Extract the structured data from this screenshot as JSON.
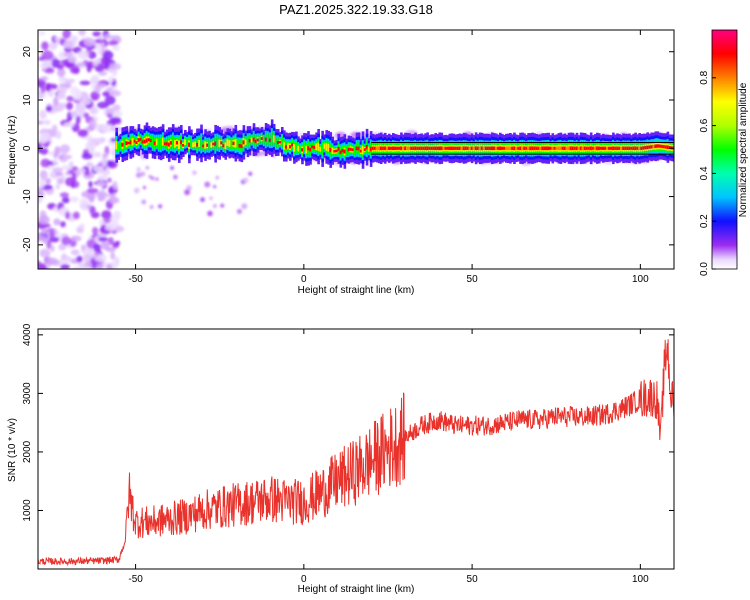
{
  "title": "PAZ1.2025.322.19.33.G18",
  "chart_data": [
    {
      "type": "heatmap",
      "xlabel": "Height of straight line (km)",
      "ylabel": "Frequency (Hz)",
      "xlim": [
        -79,
        110
      ],
      "ylim": [
        -25,
        24.5
      ],
      "xticks": [
        -50,
        0,
        50,
        100
      ],
      "yticks": [
        -20,
        -10,
        0,
        10,
        20
      ],
      "colorbar": {
        "label": "Normalized spectral amplitude",
        "range": [
          0,
          1
        ],
        "ticks": [
          0.0,
          0.2,
          0.4,
          0.6,
          0.8
        ]
      },
      "model_line_frequency": 0,
      "ridge": {
        "x": [
          -55,
          -50,
          -45,
          -40,
          -35,
          -30,
          -25,
          -20,
          -15,
          -10,
          -5,
          0,
          5,
          10,
          15,
          20,
          30,
          50,
          70,
          90,
          100,
          105,
          110
        ],
        "y": [
          0.5,
          1.5,
          1.5,
          1.0,
          1.0,
          0.8,
          1.0,
          0.6,
          1.5,
          1.8,
          0.5,
          0.0,
          0.2,
          -0.5,
          -0.3,
          0.0,
          0.0,
          0.0,
          0.0,
          0.0,
          0.0,
          0.5,
          0.0
        ]
      }
    },
    {
      "type": "line",
      "xlabel": "Height of straight line (km)",
      "ylabel": "SNR (10 * v/v)",
      "xlim": [
        -79,
        110
      ],
      "ylim": [
        0,
        4100
      ],
      "xticks": [
        -50,
        0,
        50,
        100
      ],
      "yticks": [
        1000,
        2000,
        3000,
        4000
      ],
      "series": [
        {
          "color": "#e8322b",
          "x": [
            -79,
            -70,
            -60,
            -55,
            -53,
            -52,
            -50,
            -45,
            -40,
            -35,
            -30,
            -25,
            -20,
            -15,
            -10,
            -5,
            0,
            5,
            10,
            15,
            20,
            25,
            30,
            35,
            40,
            45,
            50,
            55,
            60,
            65,
            70,
            75,
            80,
            85,
            90,
            95,
            100,
            103,
            105,
            106,
            107,
            108,
            109,
            110
          ],
          "y": [
            130,
            130,
            140,
            160,
            500,
            1300,
            800,
            800,
            850,
            900,
            1000,
            1050,
            1100,
            1150,
            1200,
            1150,
            1150,
            1300,
            1500,
            1650,
            1850,
            2050,
            2250,
            2450,
            2550,
            2450,
            2450,
            2450,
            2500,
            2550,
            2550,
            2600,
            2600,
            2600,
            2650,
            2750,
            2900,
            2950,
            2900,
            2200,
            3300,
            3900,
            3000,
            2800
          ]
        }
      ]
    }
  ]
}
